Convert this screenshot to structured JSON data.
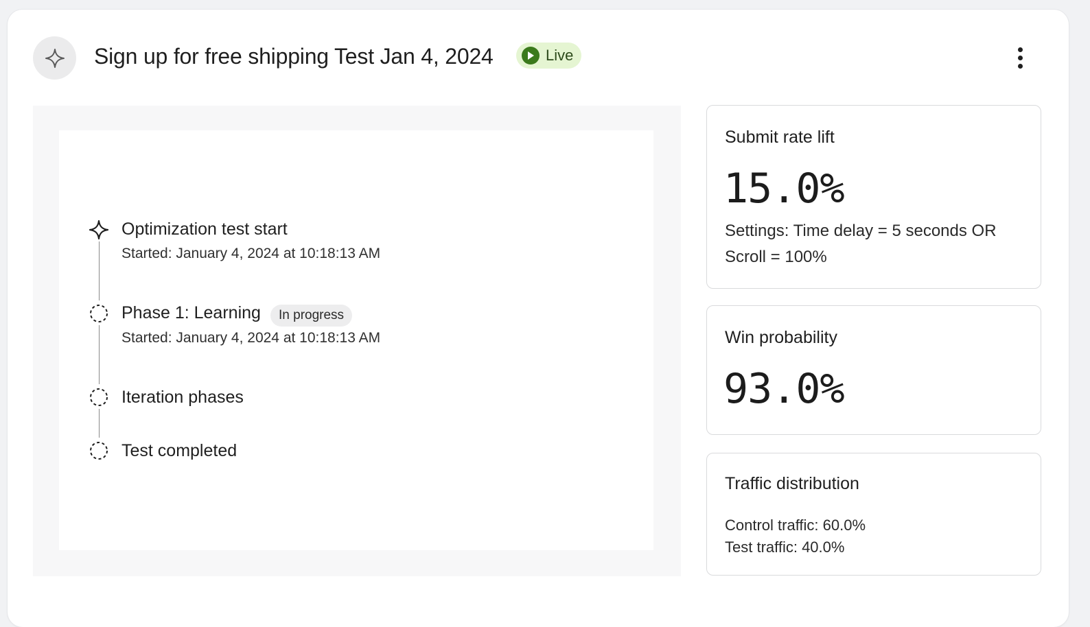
{
  "header": {
    "icon": "sparkle-icon",
    "title": "Sign up for free shipping Test Jan 4, 2024",
    "status_label": "Live",
    "status_color": "#3b7a1c",
    "more_icon": "more-vertical-icon"
  },
  "timeline": {
    "items": [
      {
        "title": "Optimization test start",
        "subtitle": "Started: January 4, 2024 at 10:18:13 AM",
        "icon": "sparkle-icon"
      },
      {
        "title": "Phase 1: Learning",
        "badge": "In progress",
        "subtitle": "Started: January 4, 2024 at 10:18:13 AM",
        "icon": "dashed-circle-icon"
      },
      {
        "title": "Iteration phases",
        "icon": "dashed-circle-icon"
      },
      {
        "title": "Test completed",
        "icon": "dashed-circle-icon"
      }
    ]
  },
  "metrics": {
    "submit_rate": {
      "title": "Submit rate lift",
      "value": "15.0%",
      "settings": "Settings: Time delay = 5 seconds OR Scroll = 100%"
    },
    "win_probability": {
      "title": "Win probability",
      "value": "93.0%"
    },
    "traffic": {
      "title": "Traffic distribution",
      "control": "Control traffic: 60.0%",
      "test": "Test traffic: 40.0%"
    }
  }
}
